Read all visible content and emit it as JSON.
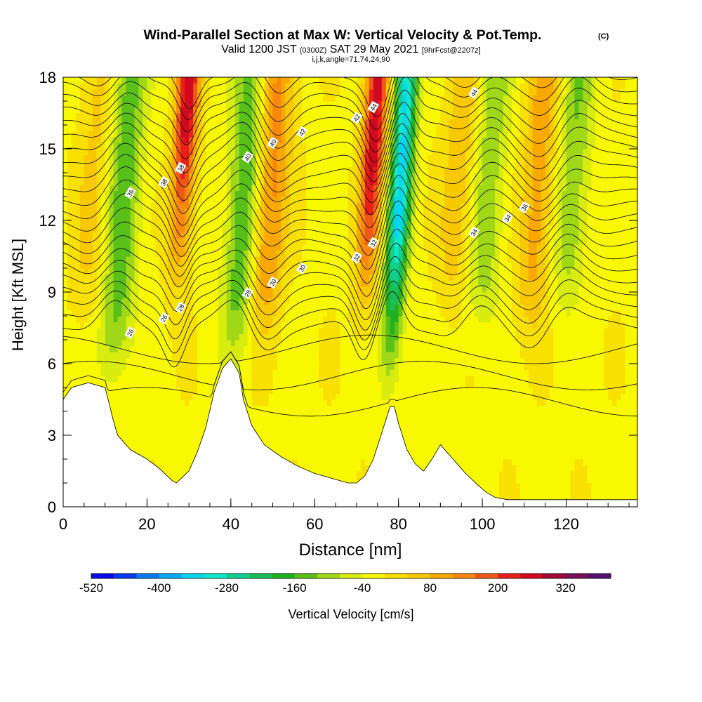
{
  "title": {
    "main": "Wind-Parallel Section at Max W: Vertical Velocity & Pot.Temp.",
    "copyright": "(C)",
    "valid_prefix": "Valid 1200 JST",
    "valid_utc": "(0300Z)",
    "valid_date": "SAT 29 May 2021",
    "forecast": "[9hrFcst@2207z]",
    "params": "i,j,k,angle=71,74,24,90"
  },
  "chart_data": {
    "type": "heatmap",
    "xlabel": "Distance [nm]",
    "ylabel": "Height [Kft MSL]",
    "xlim": [
      0,
      137
    ],
    "ylim": [
      0,
      18
    ],
    "xticks": [
      "0",
      "20",
      "40",
      "60",
      "80",
      "100",
      "120"
    ],
    "yticks": [
      "0",
      "3",
      "6",
      "9",
      "12",
      "15",
      "18"
    ],
    "colorbar": {
      "label": "Vertical Velocity [cm/s]",
      "tick_labels": [
        "-520",
        "-400",
        "-280",
        "-160",
        "-40",
        "80",
        "200",
        "320"
      ],
      "levels": [
        -520,
        -480,
        -440,
        -400,
        -360,
        -320,
        -280,
        -240,
        -200,
        -160,
        -120,
        -80,
        -40,
        0,
        40,
        80,
        120,
        160,
        200,
        240,
        280,
        320,
        360,
        400
      ],
      "colors": [
        "#0a08e8",
        "#0838f0",
        "#0878f4",
        "#08aaf4",
        "#08d6f0",
        "#10e8c8",
        "#10d090",
        "#18be58",
        "#20b020",
        "#58c018",
        "#a0d818",
        "#d8ec10",
        "#f8f800",
        "#f8e000",
        "#f8c800",
        "#f8a800",
        "#f88810",
        "#f05818",
        "#e82018",
        "#d00820",
        "#a00838",
        "#781058",
        "#581070"
      ]
    },
    "shaded_field": "Vertical Velocity [cm/s]",
    "contour_field": "Potential temperature (contour labels)",
    "contour_labels": [
      "26",
      "28",
      "30",
      "32",
      "34",
      "36",
      "38",
      "40",
      "42",
      "44"
    ],
    "updrafts": [
      {
        "x_nm": 27,
        "z_base_kft": 9,
        "peak_cm_s": 280
      },
      {
        "x_nm": 72,
        "z_base_kft": 8,
        "peak_cm_s": 280
      },
      {
        "x_nm": 48,
        "z_base_kft": 8,
        "peak_cm_s": 150
      },
      {
        "x_nm": 6,
        "z_base_kft": 8,
        "peak_cm_s": 60
      },
      {
        "x_nm": 93,
        "z_base_kft": 9,
        "peak_cm_s": 80
      },
      {
        "x_nm": 112,
        "z_base_kft": 8,
        "peak_cm_s": 110
      }
    ],
    "downdrafts": [
      {
        "x_nm": 79,
        "z_base_kft": 5,
        "peak_cm_s": -330
      },
      {
        "x_nm": 13,
        "z_base_kft": 6,
        "peak_cm_s": -140
      },
      {
        "x_nm": 42,
        "z_base_kft": 7,
        "peak_cm_s": -150
      },
      {
        "x_nm": 100,
        "z_base_kft": 8,
        "peak_cm_s": -100
      },
      {
        "x_nm": 120,
        "z_base_kft": 9,
        "peak_cm_s": -110
      }
    ],
    "terrain": {
      "x_nm": [
        0,
        2,
        6,
        10,
        11,
        12,
        13,
        14,
        15,
        16,
        20,
        23,
        26,
        27,
        30,
        32,
        34,
        36,
        38,
        40,
        42,
        43,
        45,
        48,
        52,
        56,
        60,
        64,
        68,
        70,
        72,
        74,
        76,
        78,
        79,
        80,
        82,
        84,
        86,
        88,
        90,
        93,
        96,
        99,
        101,
        103,
        106,
        110,
        120,
        130,
        137
      ],
      "height_kft": [
        4.5,
        5.0,
        5.2,
        5.0,
        4.3,
        3.6,
        3.0,
        2.8,
        2.6,
        2.4,
        2.0,
        1.6,
        1.1,
        1.0,
        1.5,
        2.3,
        3.3,
        4.8,
        5.8,
        6.2,
        5.6,
        4.5,
        3.4,
        2.6,
        2.1,
        1.7,
        1.4,
        1.2,
        1.0,
        1.0,
        1.3,
        2.0,
        3.1,
        4.2,
        4.2,
        3.5,
        2.4,
        1.8,
        1.5,
        2.0,
        2.6,
        2.0,
        1.4,
        0.9,
        0.6,
        0.4,
        0.3,
        0.3,
        0.3,
        0.3,
        0.3
      ]
    }
  }
}
